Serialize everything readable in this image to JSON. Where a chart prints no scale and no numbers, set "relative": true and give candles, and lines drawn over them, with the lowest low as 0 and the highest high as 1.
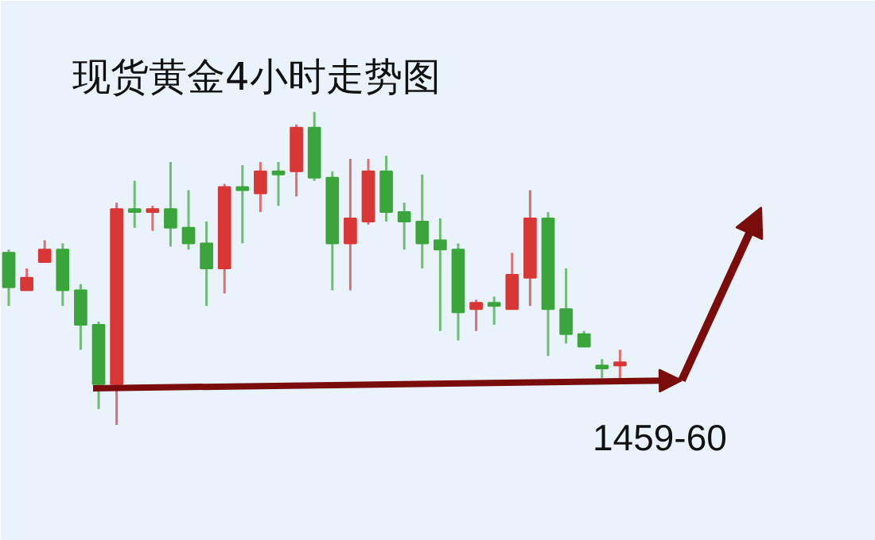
{
  "chart_data": {
    "type": "candlestick",
    "title": "现货黄金4小时走势图",
    "relative": true,
    "categories": [
      null,
      null,
      null,
      null,
      null,
      null,
      null,
      null,
      null,
      null,
      null,
      null,
      null,
      null,
      null,
      null,
      null,
      null,
      null,
      null,
      null,
      null,
      null,
      null,
      null,
      null,
      null,
      null,
      null,
      null,
      null,
      null,
      null,
      null,
      null
    ],
    "ohlc": [
      [
        0.55,
        0.56,
        0.38,
        0.44
      ],
      [
        0.43,
        0.5,
        0.43,
        0.47
      ],
      [
        0.52,
        0.59,
        0.52,
        0.56
      ],
      [
        0.56,
        0.58,
        0.38,
        0.43
      ],
      [
        0.43,
        0.45,
        0.24,
        0.32
      ],
      [
        0.32,
        0.33,
        0.05,
        0.13
      ],
      [
        0.13,
        0.71,
        0.0,
        0.69
      ],
      [
        0.69,
        0.78,
        0.63,
        0.68
      ],
      [
        0.68,
        0.7,
        0.62,
        0.69
      ],
      [
        0.69,
        0.84,
        0.57,
        0.63
      ],
      [
        0.63,
        0.75,
        0.56,
        0.58
      ],
      [
        0.58,
        0.65,
        0.38,
        0.5
      ],
      [
        0.5,
        0.77,
        0.42,
        0.76
      ],
      [
        0.76,
        0.83,
        0.58,
        0.75
      ],
      [
        0.74,
        0.84,
        0.68,
        0.81
      ],
      [
        0.81,
        0.84,
        0.7,
        0.8
      ],
      [
        0.81,
        0.96,
        0.73,
        0.95
      ],
      [
        0.95,
        1.0,
        0.78,
        0.79
      ],
      [
        0.79,
        0.81,
        0.43,
        0.58
      ],
      [
        0.58,
        0.85,
        0.43,
        0.66
      ],
      [
        0.65,
        0.85,
        0.64,
        0.81
      ],
      [
        0.81,
        0.86,
        0.65,
        0.68
      ],
      [
        0.68,
        0.71,
        0.56,
        0.65
      ],
      [
        0.65,
        0.8,
        0.5,
        0.58
      ],
      [
        0.59,
        0.66,
        0.3,
        0.56
      ],
      [
        0.56,
        0.58,
        0.27,
        0.36
      ],
      [
        0.37,
        0.4,
        0.3,
        0.39
      ],
      [
        0.39,
        0.41,
        0.32,
        0.38
      ],
      [
        0.37,
        0.55,
        0.37,
        0.48
      ],
      [
        0.47,
        0.75,
        0.38,
        0.66
      ],
      [
        0.66,
        0.68,
        0.22,
        0.37
      ],
      [
        0.37,
        0.5,
        0.26,
        0.29
      ],
      [
        0.29,
        0.3,
        0.25,
        0.25
      ],
      [
        0.19,
        0.21,
        0.15,
        0.18
      ],
      [
        0.19,
        0.24,
        0.15,
        0.2
      ]
    ],
    "colors": [
      "#3aa53a",
      "#d93636",
      "#d93636",
      "#3aa53a",
      "#3aa53a",
      "#3aa53a",
      "#d93636",
      "#3aa53a",
      "#d93636",
      "#3aa53a",
      "#3aa53a",
      "#3aa53a",
      "#d93636",
      "#3aa53a",
      "#d93636",
      "#3aa53a",
      "#d93636",
      "#3aa53a",
      "#3aa53a",
      "#d93636",
      "#d93636",
      "#3aa53a",
      "#3aa53a",
      "#3aa53a",
      "#3aa53a",
      "#3aa53a",
      "#d93636",
      "#3aa53a",
      "#d93636",
      "#d93636",
      "#3aa53a",
      "#3aa53a",
      "#3aa53a",
      "#3aa53a",
      "#d93636"
    ],
    "annotations": [
      "1459-60"
    ]
  }
}
